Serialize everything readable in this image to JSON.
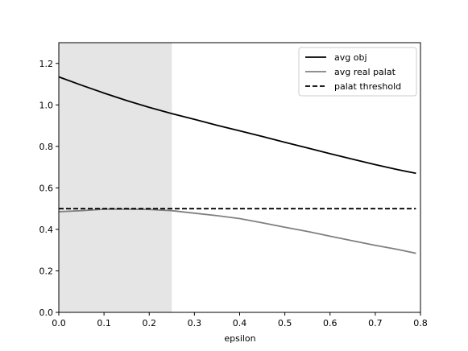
{
  "chart_data": {
    "type": "line",
    "title": "",
    "xlabel": "epsilon",
    "ylabel": "",
    "xlim": [
      0.0,
      0.8
    ],
    "ylim": [
      0.0,
      1.3
    ],
    "xticks": [
      0.0,
      0.1,
      0.2,
      0.3,
      0.4,
      0.5,
      0.6,
      0.7,
      0.8
    ],
    "xtick_labels": [
      "0.0",
      "0.1",
      "0.2",
      "0.3",
      "0.4",
      "0.5",
      "0.6",
      "0.7",
      "0.8"
    ],
    "yticks": [
      0.0,
      0.2,
      0.4,
      0.6,
      0.8,
      1.0,
      1.2
    ],
    "ytick_labels": [
      "0.0",
      "0.2",
      "0.4",
      "0.6",
      "0.8",
      "1.0",
      "1.2"
    ],
    "shaded_region": {
      "x_start": 0.0,
      "x_end": 0.25,
      "color": "#e5e5e5"
    },
    "grid": false,
    "legend_position": "top-right",
    "series": [
      {
        "name": "avg obj",
        "color": "#000000",
        "style": "solid",
        "x": [
          0.0,
          0.05,
          0.1,
          0.15,
          0.2,
          0.25,
          0.3,
          0.35,
          0.4,
          0.45,
          0.5,
          0.55,
          0.6,
          0.65,
          0.7,
          0.75,
          0.79
        ],
        "y": [
          1.135,
          1.095,
          1.057,
          1.021,
          0.988,
          0.958,
          0.93,
          0.902,
          0.875,
          0.848,
          0.82,
          0.793,
          0.765,
          0.738,
          0.712,
          0.688,
          0.67
        ]
      },
      {
        "name": "avg real palat",
        "color": "#808080",
        "style": "solid",
        "x": [
          0.0,
          0.05,
          0.1,
          0.12,
          0.15,
          0.2,
          0.25,
          0.3,
          0.35,
          0.4,
          0.45,
          0.5,
          0.55,
          0.6,
          0.65,
          0.7,
          0.75,
          0.79
        ],
        "y": [
          0.485,
          0.49,
          0.497,
          0.498,
          0.497,
          0.496,
          0.49,
          0.478,
          0.466,
          0.452,
          0.432,
          0.41,
          0.39,
          0.367,
          0.345,
          0.323,
          0.303,
          0.285
        ]
      },
      {
        "name": "palat threshold",
        "color": "#000000",
        "style": "dashed",
        "x": [
          0.0,
          0.79
        ],
        "y": [
          0.5,
          0.5
        ]
      }
    ]
  }
}
